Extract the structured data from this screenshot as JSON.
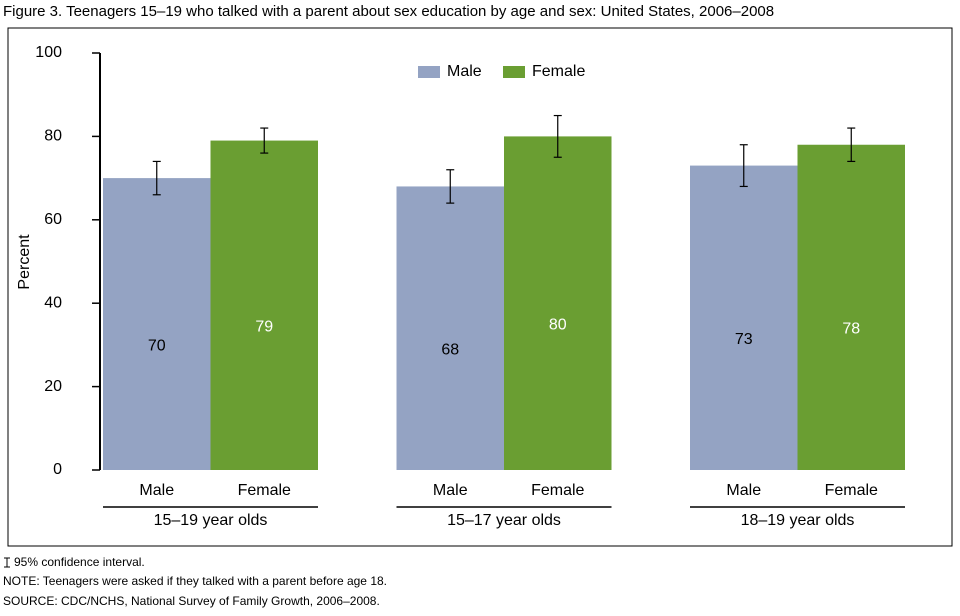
{
  "chart_data": {
    "type": "bar",
    "title": "Figure 3.  Teenagers 15–19 who talked with a parent about sex education by age and sex: United States, 2006–2008",
    "y_label": "Percent",
    "categories": [
      "15–19 year olds",
      "15–17 year olds",
      "18–19 year olds"
    ],
    "series": [
      {
        "name": "Male",
        "color": "#94a3c3",
        "label_color": "#000000",
        "values": [
          70,
          68,
          73
        ],
        "ci_low": [
          66,
          64,
          68
        ],
        "ci_high": [
          74,
          72,
          78
        ]
      },
      {
        "name": "Female",
        "color": "#6a9e32",
        "label_color": "#ffffff",
        "values": [
          79,
          80,
          78
        ],
        "ci_low": [
          76,
          75,
          74
        ],
        "ci_high": [
          82,
          85,
          82
        ]
      }
    ],
    "ylim": [
      0,
      100
    ],
    "yticks": [
      0,
      20,
      40,
      60,
      80,
      100
    ],
    "legend": "top",
    "ci_note": "95% confidence interval.",
    "note": "NOTE: Teenagers were asked if they talked with a parent before age 18.",
    "source": "SOURCE: CDC/NCHS, National Survey of Family Growth, 2006–2008."
  }
}
